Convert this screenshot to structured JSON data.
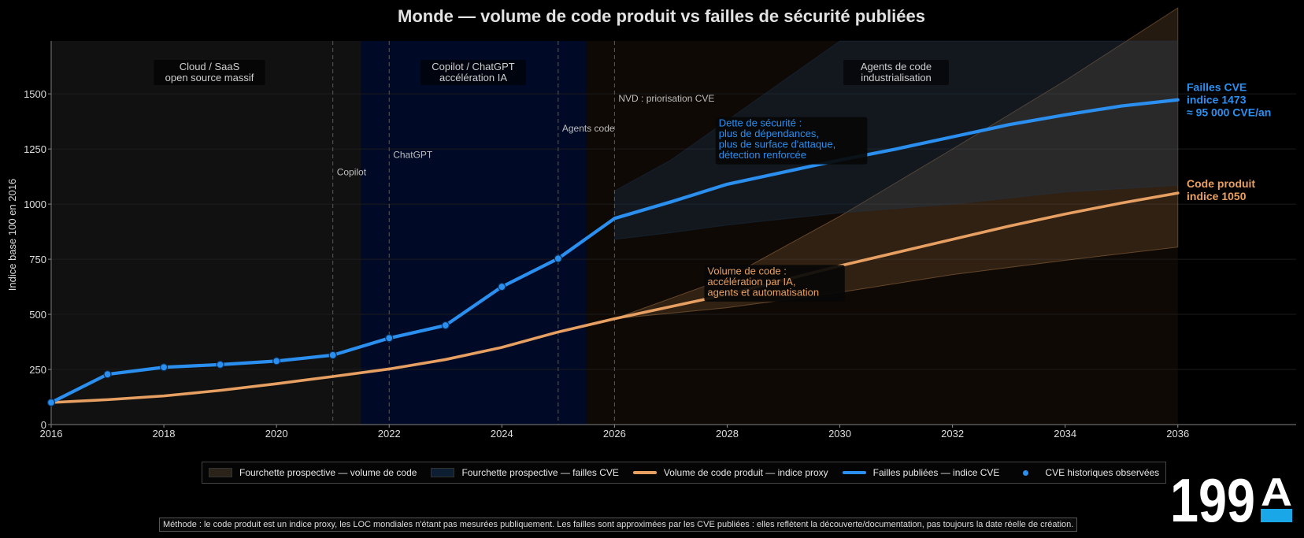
{
  "chart_data": {
    "type": "line",
    "title": "Monde — volume de code produit vs failles de sécurité publiées",
    "xlabel": "",
    "ylabel": "Indice base 100 en 2016",
    "xlim": [
      2016,
      2038.1
    ],
    "ylim": [
      0,
      1740
    ],
    "xticks": [
      2016,
      2018,
      2020,
      2022,
      2024,
      2026,
      2028,
      2030,
      2032,
      2034,
      2036
    ],
    "yticks": [
      0,
      250,
      500,
      750,
      1000,
      1250,
      1500
    ],
    "grid": true,
    "legend_position": "bottom-center",
    "periods": [
      {
        "label": "Cloud / SaaS\nopen source massif",
        "from": 2016,
        "to": 2021.5,
        "color": "#111111"
      },
      {
        "label": "Copilot / ChatGPT\naccélération IA",
        "from": 2021.5,
        "to": 2025.5,
        "color": "#000a26"
      },
      {
        "label": "Agents de code\nindustrialisation",
        "from": 2025.5,
        "to": 2036,
        "color": "#0e0904"
      }
    ],
    "events": [
      {
        "x": 2021,
        "label": "Copilot",
        "label_y": 1130
      },
      {
        "x": 2022,
        "label": "ChatGPT",
        "label_y": 1210
      },
      {
        "x": 2025,
        "label": "Agents code",
        "label_y": 1330
      },
      {
        "x": 2026,
        "label": "NVD : priorisation CVE",
        "label_y": 1465
      }
    ],
    "series": [
      {
        "name": "Volume de code produit — indice proxy",
        "color": "#e8a062",
        "x": [
          2016,
          2017,
          2018,
          2019,
          2020,
          2021,
          2022,
          2023,
          2024,
          2025,
          2026,
          2027,
          2028,
          2029,
          2030,
          2031,
          2032,
          2033,
          2034,
          2035,
          2036
        ],
        "values": [
          100,
          113,
          130,
          155,
          185,
          218,
          252,
          295,
          350,
          420,
          480,
          535,
          590,
          655,
          720,
          780,
          840,
          900,
          955,
          1005,
          1050
        ]
      },
      {
        "name": "Failles publiées — indice CVE",
        "color": "#2b8ff0",
        "x": [
          2016,
          2017,
          2018,
          2019,
          2020,
          2021,
          2022,
          2023,
          2024,
          2025,
          2026,
          2027,
          2028,
          2029,
          2030,
          2031,
          2032,
          2033,
          2034,
          2035,
          2036
        ],
        "values": [
          100,
          228,
          260,
          272,
          288,
          315,
          392,
          450,
          625,
          753,
          935,
          1010,
          1090,
          1145,
          1200,
          1250,
          1305,
          1360,
          1405,
          1445,
          1473
        ]
      }
    ],
    "historical_points": {
      "name": "CVE historiques observées",
      "color": "#2b8ff0",
      "x": [
        2016,
        2017,
        2018,
        2019,
        2020,
        2021,
        2022,
        2023,
        2024,
        2025
      ],
      "values": [
        100,
        228,
        260,
        272,
        288,
        315,
        392,
        450,
        625,
        753
      ]
    },
    "bands": [
      {
        "name": "Fourchette prospective — volume de code",
        "color": "#e8a062",
        "x": [
          2026,
          2028,
          2030,
          2032,
          2034,
          2036
        ],
        "lower": [
          480,
          530,
          600,
          680,
          745,
          805
        ],
        "upper": [
          480,
          665,
          945,
          1250,
          1560,
          1890
        ]
      },
      {
        "name": "Fourchette prospective — failles CVE",
        "color": "#1f3a5c",
        "x": [
          2026,
          2027,
          2028,
          2030,
          2032,
          2034,
          2036
        ],
        "lower": [
          840,
          870,
          905,
          960,
          1000,
          1055,
          1085
        ],
        "upper": [
          1060,
          1200,
          1380,
          1740,
          1740,
          1740,
          1740
        ]
      }
    ],
    "end_labels": [
      {
        "lines": [
          "Failles CVE",
          "indice 1473",
          "≈ 95 000 CVE/an"
        ],
        "color": "#2b8ff0",
        "y": 1473
      },
      {
        "lines": [
          "Code produit",
          "indice 1050"
        ],
        "color": "#e8a062",
        "y": 1050
      }
    ],
    "annotations": [
      {
        "lines": [
          "Dette de sécurité :",
          "plus de dépendances,",
          "plus de surface d'attaque,",
          "détection renforcée"
        ],
        "color": "#2b8ff0",
        "x": 2027.85,
        "y": 1352
      },
      {
        "lines": [
          "Volume de code :",
          "accélération par IA,",
          "agents et automatisation"
        ],
        "color": "#e8a062",
        "x": 2027.65,
        "y": 681
      }
    ]
  },
  "legend": [
    {
      "label": "Fourchette prospective — volume de code",
      "kind": "box",
      "color": "#2b2219"
    },
    {
      "label": "Fourchette prospective — failles CVE",
      "kind": "box",
      "color": "#0d1e33"
    },
    {
      "label": "Volume de code produit — indice proxy",
      "kind": "line",
      "color": "#e8a062"
    },
    {
      "label": "Failles publiées — indice CVE",
      "kind": "line",
      "color": "#2b8ff0"
    },
    {
      "label": "CVE historiques observées",
      "kind": "dot",
      "color": "#2b8ff0"
    }
  ],
  "footnote": "Méthode : le code produit est un indice proxy, les LOC mondiales n'étant pas mesurées publiquement. Les failles sont approximées par les CVE publiées : elles reflètent la découverte/documentation, pas toujours la date réelle de création.",
  "logo": {
    "text": "199",
    "mark": "A",
    "accent": "#1aa7e8"
  }
}
